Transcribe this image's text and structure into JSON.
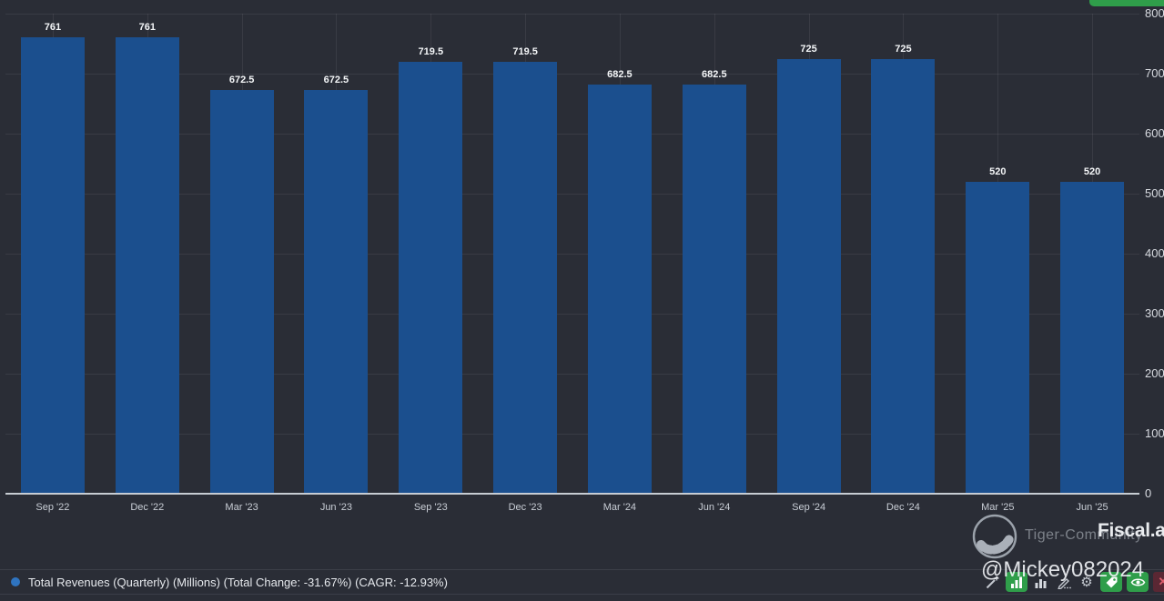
{
  "chart_data": {
    "type": "bar",
    "title": "",
    "categories": [
      "Sep '22",
      "Dec '22",
      "Mar '23",
      "Jun '23",
      "Sep '23",
      "Dec '23",
      "Mar '24",
      "Jun '24",
      "Sep '24",
      "Dec '24",
      "Mar '25",
      "Jun '25"
    ],
    "values": [
      761,
      761,
      672.5,
      672.5,
      719.5,
      719.5,
      682.5,
      682.5,
      725,
      725,
      520,
      520
    ],
    "series_name": "Total Revenues (Quarterly) (Millions)",
    "xlabel": "",
    "ylabel": "",
    "ylim": [
      0,
      800
    ],
    "yticks": [
      0,
      100,
      200,
      300,
      400,
      500,
      600,
      700,
      800
    ],
    "yaxis_position": "right",
    "grid": true,
    "legend_position": "bottom",
    "bar_color": "#1b4f8e"
  },
  "legend": {
    "label": "Total Revenues (Quarterly) (Millions) (Total Change: -31.67%) (CAGR: -12.93%)"
  },
  "branding": {
    "brand_text": "Fiscal.ai",
    "overlay_watermark": "Tiger-Community",
    "username_watermark": "@Mickey082024",
    "logo": "fiscal-ai-circle-logo"
  },
  "toolbar": {
    "icons": [
      "wand",
      "chart-type",
      "column-chart",
      "draw",
      "settings",
      "tag",
      "eye",
      "close"
    ],
    "gear_glyph": "⚙",
    "close_glyph": "✕"
  },
  "colors": {
    "background": "#2a2d36",
    "bar": "#1b4f8e",
    "accent_green": "#2f9e4a",
    "legend_dot": "#2f74c0",
    "grid": "rgba(255,255,255,0.07)",
    "axis_line": "#c7ccd3",
    "close_bg": "#5a2733",
    "close_x": "#e0606e"
  }
}
